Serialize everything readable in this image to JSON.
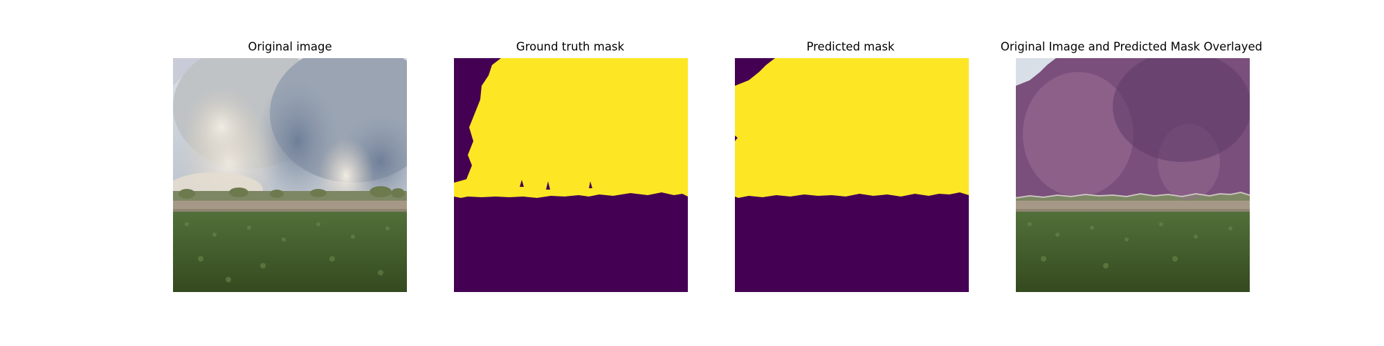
{
  "figure": {
    "panels": [
      {
        "title": "Original image"
      },
      {
        "title": "Ground truth mask"
      },
      {
        "title": "Predicted mask"
      },
      {
        "title": "Original Image and Predicted Mask Overlayed"
      }
    ]
  },
  "colors": {
    "mask_foreground": "#fde725",
    "mask_background": "#440154",
    "overlay_tint": "#5b2a63",
    "grass": "#3f5a27",
    "smoke_light": "#e6e0d6",
    "smoke_blue": "#7f8ea6",
    "dirt_strip": "#a29585"
  }
}
